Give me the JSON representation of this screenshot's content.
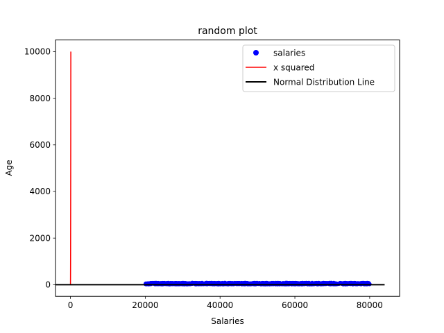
{
  "chart_data": {
    "type": "scatter",
    "title": "random plot",
    "xlabel": "Salaries",
    "ylabel": "Age",
    "xlim": [
      -4000,
      88000
    ],
    "ylim": [
      -500,
      10500
    ],
    "x_ticks": [
      0,
      20000,
      40000,
      60000,
      80000
    ],
    "x_tick_labels": [
      "0",
      "20000",
      "40000",
      "60000",
      "80000"
    ],
    "y_ticks": [
      0,
      2000,
      4000,
      6000,
      8000,
      10000
    ],
    "y_tick_labels": [
      "0",
      "2000",
      "4000",
      "6000",
      "8000",
      "10000"
    ],
    "grid": false,
    "legend_position": "top-right",
    "series": [
      {
        "name": "salaries",
        "kind": "scatter",
        "color": "#0000ff",
        "x_range": [
          20000,
          80000
        ],
        "y_range": [
          18,
          80
        ]
      },
      {
        "name": "x squared",
        "kind": "line",
        "color": "#ff0000",
        "x": [
          0,
          10,
          20,
          30,
          40,
          50,
          60,
          70,
          80,
          90,
          100
        ],
        "y": [
          0,
          100,
          400,
          900,
          1600,
          2500,
          3600,
          4900,
          6400,
          8100,
          10000
        ]
      },
      {
        "name": "Normal Distribution Line",
        "kind": "line",
        "color": "#000000",
        "x": [
          -4000,
          84000
        ],
        "y": [
          0,
          0
        ]
      }
    ]
  }
}
